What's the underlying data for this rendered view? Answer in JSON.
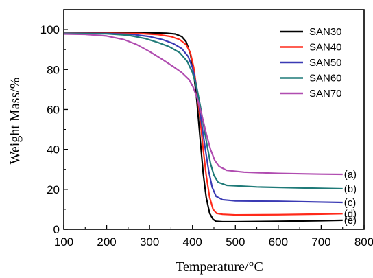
{
  "chart_data": {
    "type": "line",
    "xlabel": "Temperature/°C",
    "ylabel": "Weight Mass/%",
    "xlim": [
      100,
      800
    ],
    "ylim": [
      0,
      110
    ],
    "x_ticks": [
      100,
      200,
      300,
      400,
      500,
      600,
      700,
      800
    ],
    "y_ticks": [
      0,
      20,
      40,
      60,
      80,
      100
    ],
    "legend_position": "top-right",
    "grid": false,
    "series": [
      {
        "name": "SAN30",
        "color": "#000000",
        "end_label": "(e)",
        "points": [
          [
            100,
            98.2
          ],
          [
            200,
            98.3
          ],
          [
            300,
            98.4
          ],
          [
            340,
            98.2
          ],
          [
            360,
            97.8
          ],
          [
            375,
            96.5
          ],
          [
            385,
            94
          ],
          [
            395,
            88
          ],
          [
            402,
            80
          ],
          [
            410,
            65
          ],
          [
            418,
            45
          ],
          [
            425,
            28
          ],
          [
            432,
            16
          ],
          [
            440,
            8
          ],
          [
            448,
            5
          ],
          [
            455,
            4.0
          ],
          [
            470,
            3.8
          ],
          [
            500,
            3.8
          ],
          [
            600,
            4.0
          ],
          [
            700,
            4.3
          ],
          [
            750,
            4.5
          ]
        ]
      },
      {
        "name": "SAN40",
        "color": "#ff2a1a",
        "end_label": "(d)",
        "points": [
          [
            100,
            98.0
          ],
          [
            200,
            98.2
          ],
          [
            280,
            98.0
          ],
          [
            320,
            97.5
          ],
          [
            350,
            96.5
          ],
          [
            370,
            95
          ],
          [
            385,
            92.5
          ],
          [
            395,
            88.5
          ],
          [
            403,
            81
          ],
          [
            410,
            70
          ],
          [
            418,
            55
          ],
          [
            425,
            40
          ],
          [
            432,
            27
          ],
          [
            440,
            16
          ],
          [
            448,
            10
          ],
          [
            456,
            8
          ],
          [
            470,
            7.5
          ],
          [
            500,
            7.2
          ],
          [
            600,
            7.3
          ],
          [
            700,
            7.6
          ],
          [
            750,
            7.8
          ]
        ]
      },
      {
        "name": "SAN50",
        "color": "#3a3ab4",
        "end_label": "(c)",
        "points": [
          [
            100,
            98.0
          ],
          [
            200,
            98.0
          ],
          [
            260,
            97.6
          ],
          [
            300,
            96.5
          ],
          [
            330,
            95
          ],
          [
            355,
            93
          ],
          [
            375,
            90.5
          ],
          [
            390,
            86.5
          ],
          [
            400,
            81
          ],
          [
            408,
            73
          ],
          [
            415,
            63
          ],
          [
            422,
            52
          ],
          [
            430,
            40
          ],
          [
            438,
            29
          ],
          [
            446,
            21
          ],
          [
            455,
            16.5
          ],
          [
            470,
            14.8
          ],
          [
            500,
            14.2
          ],
          [
            600,
            14.0
          ],
          [
            700,
            13.6
          ],
          [
            750,
            13.4
          ]
        ]
      },
      {
        "name": "SAN60",
        "color": "#1f7a78",
        "end_label": "(b)",
        "points": [
          [
            100,
            98.0
          ],
          [
            200,
            97.9
          ],
          [
            250,
            97.2
          ],
          [
            290,
            95.5
          ],
          [
            320,
            93.5
          ],
          [
            345,
            91.5
          ],
          [
            370,
            88.5
          ],
          [
            388,
            84
          ],
          [
            400,
            78.5
          ],
          [
            410,
            71
          ],
          [
            418,
            62
          ],
          [
            426,
            52
          ],
          [
            434,
            42
          ],
          [
            442,
            33
          ],
          [
            450,
            27
          ],
          [
            460,
            23.5
          ],
          [
            480,
            22
          ],
          [
            550,
            21.2
          ],
          [
            650,
            20.7
          ],
          [
            750,
            20.3
          ]
        ]
      },
      {
        "name": "SAN70",
        "color": "#b04cb0",
        "end_label": "(a)",
        "points": [
          [
            100,
            97.8
          ],
          [
            150,
            97.6
          ],
          [
            200,
            96.8
          ],
          [
            240,
            95
          ],
          [
            270,
            92.5
          ],
          [
            300,
            89
          ],
          [
            330,
            85
          ],
          [
            355,
            81.5
          ],
          [
            375,
            78.5
          ],
          [
            392,
            75
          ],
          [
            402,
            71
          ],
          [
            412,
            65
          ],
          [
            422,
            57
          ],
          [
            432,
            48
          ],
          [
            442,
            40
          ],
          [
            452,
            34.5
          ],
          [
            462,
            31.5
          ],
          [
            480,
            29.5
          ],
          [
            520,
            28.6
          ],
          [
            600,
            28.0
          ],
          [
            700,
            27.6
          ],
          [
            750,
            27.5
          ]
        ]
      }
    ]
  }
}
